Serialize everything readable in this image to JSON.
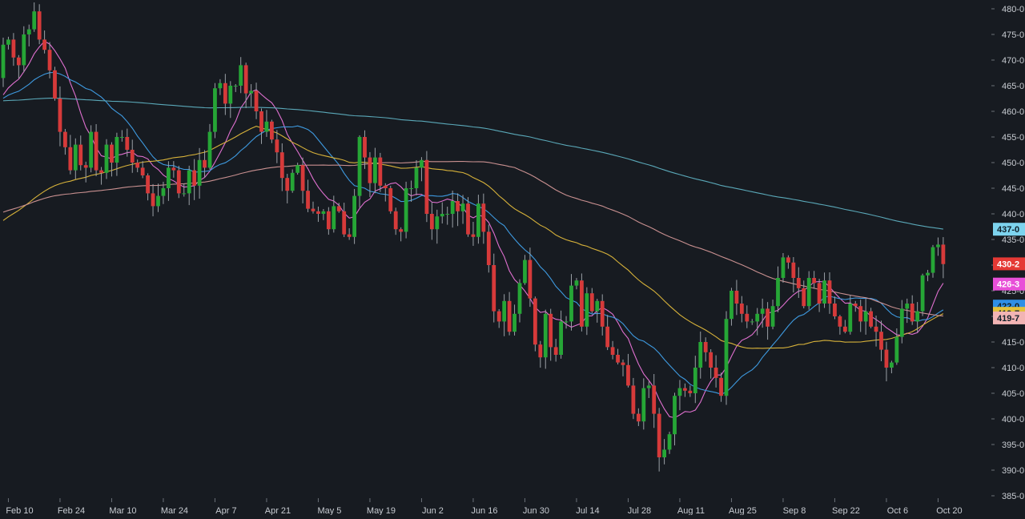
{
  "chart_data": {
    "type": "candlestick",
    "title": "",
    "xlabel": "",
    "ylabel": "",
    "ylim": [
      385,
      481
    ],
    "y_ticks": [
      "480-0",
      "475-0",
      "470-0",
      "465-0",
      "460-0",
      "455-0",
      "450-0",
      "445-0",
      "440-0",
      "435-0",
      "430-0",
      "425-0",
      "420-0",
      "415-0",
      "410-0",
      "405-0",
      "400-0",
      "395-0",
      "390-0",
      "385-0"
    ],
    "x_ticks": [
      "Feb 10",
      "Feb 24",
      "Mar 10",
      "Mar 24",
      "Apr 7",
      "Apr 21",
      "May 5",
      "May 19",
      "Jun 2",
      "Jun 16",
      "Jun 30",
      "Jul 14",
      "Jul 28",
      "Aug 11",
      "Aug 25",
      "Sep 8",
      "Sep 22",
      "Oct 6",
      "Oct 20"
    ],
    "tick_trading_day_index": [
      1,
      11,
      21,
      31,
      41,
      51,
      61,
      71,
      81,
      91,
      101,
      111,
      121,
      131,
      141,
      151,
      161,
      171,
      181
    ],
    "grid": false,
    "candles": {
      "open": [
        466.5,
        473.0,
        474.0,
        470.5,
        469.0,
        475.0,
        476.0,
        479.5,
        474.0,
        472.0,
        468.0,
        462.5,
        456.0,
        453.0,
        448.5,
        453.5,
        449.5,
        449.0,
        456.0,
        448.5,
        448.0,
        453.5,
        450.0,
        455.0,
        455.0,
        452.5,
        450.0,
        449.0,
        447.5,
        444.0,
        441.5,
        443.5,
        445.0,
        449.0,
        448.5,
        444.0,
        444.0,
        448.5,
        445.5,
        450.5,
        449.0,
        456.0,
        464.5,
        465.5,
        461.5,
        465.0,
        465.0,
        469.0,
        463.5,
        464.0,
        460.0,
        456.0,
        458.0,
        454.5,
        452.0,
        447.0,
        444.5,
        448.0,
        449.5,
        444.5,
        441.0,
        440.5,
        440.0,
        440.5,
        437.0,
        441.5,
        440.5,
        436.0,
        435.5,
        443.5,
        455.0,
        451.0,
        446.0,
        451.0,
        445.5,
        445.0,
        440.5,
        437.0,
        436.5,
        445.0,
        445.0,
        449.0,
        450.5,
        440.0,
        437.0,
        439.5,
        440.0,
        440.0,
        442.5,
        440.5,
        442.0,
        436.0,
        435.5,
        442.0,
        436.5,
        430.0,
        421.0,
        419.0,
        423.0,
        417.0,
        420.5,
        426.5,
        431.0,
        423.5,
        414.5,
        412.0,
        420.5,
        414.0,
        412.5,
        419.0,
        419.0,
        426.0,
        427.0,
        418.0,
        424.5,
        421.0,
        423.0,
        418.0,
        414.0,
        412.5,
        411.0,
        410.5,
        406.5,
        401.0,
        399.5,
        406.0,
        406.5,
        401.0,
        392.5,
        394.0,
        397.0,
        404.5,
        406.0,
        405.5,
        405.0,
        410.0,
        415.0,
        413.0,
        410.0,
        408.0,
        404.5,
        419.5,
        425.0,
        422.5,
        420.5,
        419.0,
        419.0,
        420.5,
        421.5,
        418.0,
        422.0,
        427.5,
        431.5,
        430.5,
        427.5,
        425.5,
        422.0,
        427.5,
        426.5,
        422.5,
        427.0,
        422.5,
        420.0,
        418.0,
        417.0,
        422.5,
        422.0,
        419.0,
        421.0,
        418.0,
        417.0,
        413.5,
        410.0,
        411.0,
        416.0,
        421.5,
        422.5,
        419.0,
        421.0,
        428.0,
        428.5,
        433.5,
        434.0
      ],
      "close": [
        473.0,
        474.0,
        470.5,
        469.0,
        475.0,
        476.0,
        479.5,
        474.0,
        472.0,
        468.0,
        462.5,
        456.0,
        453.0,
        448.5,
        453.5,
        449.5,
        449.0,
        456.0,
        448.5,
        448.0,
        453.5,
        450.0,
        455.0,
        455.0,
        452.5,
        450.0,
        449.0,
        447.5,
        444.0,
        441.5,
        443.5,
        445.0,
        449.0,
        448.5,
        444.0,
        444.0,
        448.5,
        445.5,
        450.5,
        449.0,
        456.0,
        464.5,
        465.5,
        461.5,
        465.0,
        465.0,
        469.0,
        463.5,
        464.0,
        460.0,
        456.0,
        458.0,
        454.5,
        452.0,
        447.0,
        444.5,
        448.0,
        449.5,
        444.5,
        441.0,
        440.5,
        440.0,
        440.5,
        437.0,
        441.5,
        440.5,
        436.0,
        435.5,
        443.5,
        455.0,
        451.0,
        446.0,
        451.0,
        445.5,
        445.0,
        440.5,
        437.0,
        436.5,
        445.0,
        445.0,
        449.0,
        450.5,
        440.0,
        437.0,
        439.5,
        440.0,
        440.0,
        442.5,
        440.5,
        442.0,
        436.0,
        435.5,
        442.0,
        436.5,
        430.0,
        421.0,
        419.0,
        423.0,
        417.0,
        420.5,
        426.5,
        431.0,
        423.5,
        414.5,
        412.0,
        420.5,
        414.0,
        412.5,
        419.0,
        419.0,
        426.0,
        427.0,
        418.0,
        424.5,
        421.0,
        423.0,
        418.0,
        414.0,
        412.5,
        411.0,
        410.5,
        406.5,
        401.0,
        399.5,
        406.0,
        406.5,
        401.0,
        392.5,
        394.0,
        397.0,
        404.5,
        406.0,
        405.5,
        405.0,
        410.0,
        415.0,
        413.0,
        410.0,
        408.0,
        404.5,
        419.5,
        425.0,
        422.5,
        420.5,
        419.0,
        419.0,
        420.5,
        421.5,
        418.0,
        422.0,
        427.5,
        431.5,
        430.5,
        427.5,
        425.5,
        422.0,
        427.5,
        426.5,
        422.5,
        427.0,
        422.5,
        420.0,
        418.0,
        417.0,
        422.5,
        422.0,
        419.0,
        421.0,
        418.0,
        417.0,
        413.5,
        410.0,
        411.0,
        416.0,
        421.5,
        422.5,
        419.0,
        421.0,
        428.0,
        428.5,
        433.5,
        434.0,
        430.2
      ]
    },
    "moving_averages": [
      {
        "period": 9,
        "color": "#e070d0",
        "last_label": "426-3"
      },
      {
        "period": 20,
        "color": "#3e9ae0",
        "last_label": "422-0"
      },
      {
        "period": 50,
        "color": "#d7b23a",
        "last_label": "419-7"
      },
      {
        "period": 100,
        "color": "#c99090",
        "last_label": ""
      },
      {
        "period": 200,
        "color": "#5aa8b8",
        "last_label": "437-0"
      }
    ],
    "last_price_label": "430-2",
    "last_price_color": "#e53935",
    "up_color": "#26a636",
    "down_color": "#d63a3a"
  }
}
